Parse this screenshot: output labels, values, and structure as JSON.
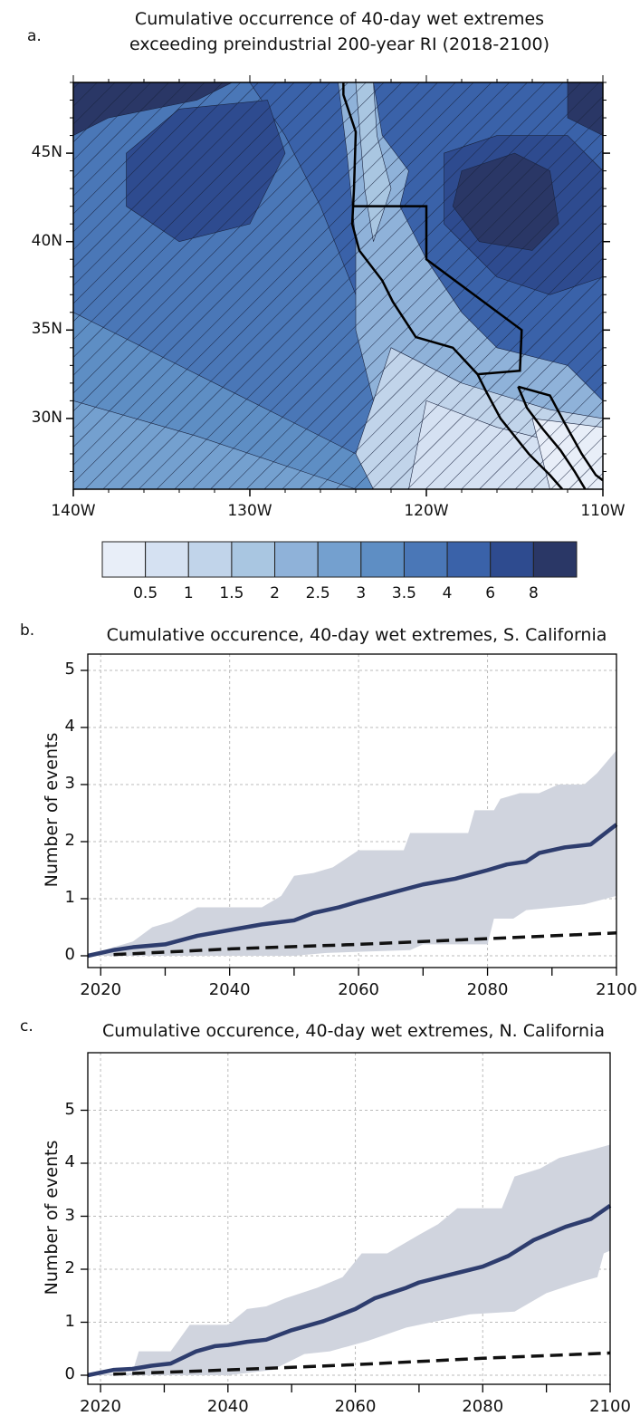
{
  "panel_a": {
    "label": "a.",
    "title_line1": "Cumulative occurrence of 40-day wet extremes",
    "title_line2": "exceeding preindustrial 200-year RI (2018-2100)",
    "lat_ticks": [
      "45N",
      "40N",
      "35N",
      "30N"
    ],
    "lon_ticks": [
      "140W",
      "130W",
      "120W",
      "110W"
    ],
    "colorbar": {
      "labels": [
        "0.5",
        "1",
        "1.5",
        "2",
        "2.5",
        "3",
        "3.5",
        "4",
        "6",
        "8"
      ],
      "colors": [
        "#e8eef8",
        "#d5e1f2",
        "#c1d4ea",
        "#a9c6e1",
        "#8fb2d9",
        "#74a0cf",
        "#5e8ec4",
        "#4a77b7",
        "#3a62a9",
        "#2e4b8f",
        "#2a3766"
      ]
    }
  },
  "chart_data": [
    {
      "type": "line",
      "panel": "b.",
      "title": "Cumulative occurence, 40-day wet extremes, S. California",
      "ylabel": "Number of events",
      "xlim": [
        2018,
        2100
      ],
      "ylim": [
        -0.2,
        5.2
      ],
      "xticks": [
        "2020",
        "2040",
        "2060",
        "2080",
        "2100"
      ],
      "yticks": [
        "0",
        "1",
        "2",
        "3",
        "4",
        "5"
      ],
      "grid": true,
      "mean": {
        "x": [
          2018,
          2022,
          2025,
          2030,
          2035,
          2040,
          2045,
          2050,
          2053,
          2057,
          2060,
          2065,
          2070,
          2075,
          2080,
          2083,
          2086,
          2088,
          2092,
          2096,
          2100
        ],
        "y": [
          0,
          0.1,
          0.15,
          0.2,
          0.35,
          0.45,
          0.55,
          0.62,
          0.75,
          0.85,
          0.95,
          1.1,
          1.25,
          1.35,
          1.5,
          1.6,
          1.65,
          1.8,
          1.9,
          1.95,
          2.3
        ],
        "color": "#2e3d6e"
      },
      "upper": {
        "x": [
          2018,
          2022,
          2025,
          2028,
          2031,
          2035,
          2045,
          2048,
          2050,
          2053,
          2056,
          2060,
          2067,
          2068,
          2077,
          2078,
          2081,
          2082,
          2085,
          2088,
          2091,
          2095,
          2097,
          2100
        ],
        "y": [
          0,
          0.15,
          0.25,
          0.5,
          0.6,
          0.85,
          0.85,
          1.05,
          1.4,
          1.45,
          1.55,
          1.85,
          1.85,
          2.15,
          2.15,
          2.55,
          2.55,
          2.75,
          2.85,
          2.85,
          3.0,
          3.0,
          3.2,
          3.6
        ]
      },
      "lower": {
        "x": [
          2018,
          2050,
          2055,
          2068,
          2070,
          2080,
          2081,
          2084,
          2086,
          2095,
          2100
        ],
        "y": [
          0,
          0,
          0.05,
          0.1,
          0.2,
          0.2,
          0.65,
          0.65,
          0.8,
          0.9,
          1.05
        ]
      },
      "band_color": "#d0d4de",
      "dashed": {
        "x": [
          2022,
          2040,
          2060,
          2080,
          2100
        ],
        "y": [
          0.02,
          0.12,
          0.2,
          0.3,
          0.4
        ],
        "color": "#111111"
      }
    },
    {
      "type": "line",
      "panel": "c.",
      "title": "Cumulative occurence, 40-day wet extremes, N. California",
      "ylabel": "Number of events",
      "xlim": [
        2018,
        2100
      ],
      "ylim": [
        -0.2,
        5.2
      ],
      "xticks": [
        "2020",
        "2040",
        "2060",
        "2080",
        "2100"
      ],
      "yticks": [
        "0",
        "1",
        "2",
        "3",
        "4",
        "5"
      ],
      "grid": true,
      "mean": {
        "x": [
          2018,
          2022,
          2025,
          2028,
          2031,
          2035,
          2038,
          2040,
          2043,
          2046,
          2050,
          2055,
          2060,
          2063,
          2068,
          2070,
          2075,
          2080,
          2084,
          2088,
          2093,
          2097,
          2100
        ],
        "y": [
          0,
          0.1,
          0.12,
          0.18,
          0.22,
          0.45,
          0.55,
          0.57,
          0.63,
          0.67,
          0.85,
          1.02,
          1.25,
          1.45,
          1.65,
          1.75,
          1.9,
          2.05,
          2.25,
          2.55,
          2.8,
          2.95,
          3.2
        ],
        "color": "#2e3d6e"
      },
      "upper": {
        "x": [
          2018,
          2025,
          2026,
          2031,
          2034,
          2040,
          2043,
          2046,
          2049,
          2054,
          2058,
          2061,
          2065,
          2070,
          2073,
          2076,
          2083,
          2085,
          2089,
          2092,
          2097,
          2100
        ],
        "y": [
          0,
          0.05,
          0.45,
          0.45,
          0.95,
          0.95,
          1.25,
          1.3,
          1.45,
          1.65,
          1.85,
          2.3,
          2.3,
          2.65,
          2.85,
          3.15,
          3.15,
          3.75,
          3.9,
          4.1,
          4.25,
          4.35
        ]
      },
      "lower": {
        "x": [
          2018,
          2040,
          2047,
          2052,
          2056,
          2062,
          2068,
          2072,
          2078,
          2085,
          2090,
          2095,
          2098,
          2099,
          2100
        ],
        "y": [
          0,
          0,
          0.1,
          0.4,
          0.45,
          0.65,
          0.9,
          1.0,
          1.15,
          1.2,
          1.55,
          1.75,
          1.85,
          2.3,
          2.35
        ]
      },
      "band_color": "#d0d4de",
      "dashed": {
        "x": [
          2022,
          2040,
          2060,
          2080,
          2100
        ],
        "y": [
          0.02,
          0.1,
          0.2,
          0.32,
          0.42
        ],
        "color": "#111111"
      }
    }
  ]
}
